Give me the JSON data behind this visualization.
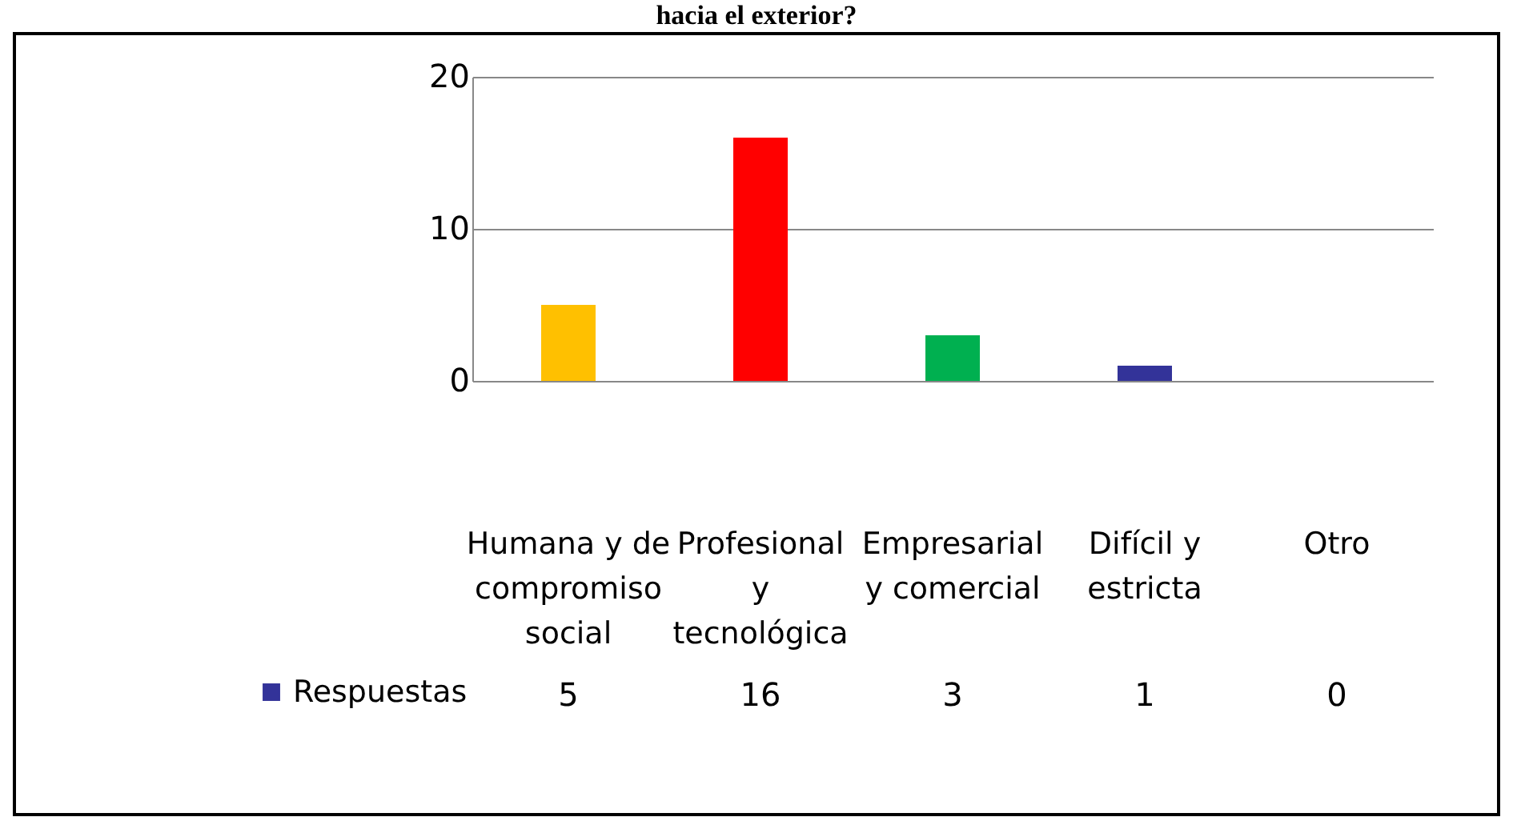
{
  "chart_data": {
    "type": "bar",
    "title": "hacia el exterior?",
    "categories": [
      "Humana y de compromiso social",
      "Profesional y tecnológica",
      "Empresarial y comercial",
      "Difícil y estricta",
      "Otro"
    ],
    "series": [
      {
        "name": "Respuestas",
        "color": "#333399",
        "colors": [
          "#ffc000",
          "#ff0000",
          "#00b050",
          "#333399",
          "#333399"
        ],
        "values": [
          5,
          16,
          3,
          1,
          0
        ]
      }
    ],
    "ylim": [
      0,
      20
    ],
    "yticks": [
      0,
      10,
      20
    ],
    "grid": "y",
    "data_labels": true,
    "legend": "bottom left"
  }
}
